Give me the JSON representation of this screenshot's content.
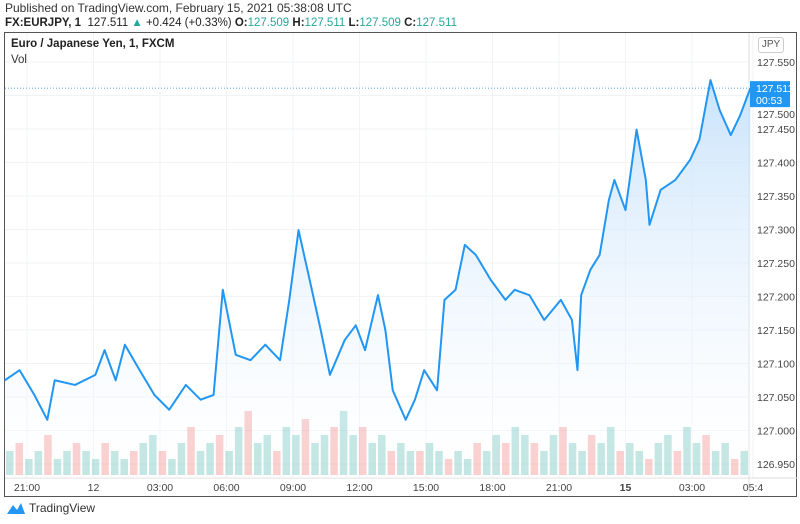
{
  "header": {
    "published": "Published on TradingView.com, February 15, 2021 05:38:08 UTC",
    "symbol": "FX:EURJPY, 1",
    "last": "127.511",
    "arrow": "▲",
    "change": "+0.424 (+0.33%)",
    "o_label": "O:",
    "o": "127.509",
    "h_label": "H:",
    "h": "127.511",
    "l_label": "L:",
    "l": "127.509",
    "c_label": "C:",
    "c": "127.511"
  },
  "legend": {
    "title": "Euro / Japanese Yen, 1, FXCM",
    "volume": "Vol"
  },
  "currency_button": "JPY",
  "footer": {
    "brand": "TradingView"
  },
  "colors": {
    "line": "#2196f3",
    "fill": "#e3f0fd",
    "up_vol": "#26a69a",
    "down_vol": "#ef5350",
    "up_text": "#26a69a"
  },
  "chart_data": {
    "type": "area",
    "ylim": [
      126.93,
      127.58
    ],
    "y_ticks": [
      "127.550",
      "127.500",
      "127.450",
      "127.400",
      "127.350",
      "127.300",
      "127.250",
      "127.200",
      "127.150",
      "127.100",
      "127.050",
      "127.000",
      "126.950"
    ],
    "x_ticks": [
      {
        "label": "21:00",
        "t": "2021-02-11 21:00"
      },
      {
        "label": "12",
        "t": "2021-02-12 00:00",
        "bold": false
      },
      {
        "label": "03:00",
        "t": "2021-02-12 03:00"
      },
      {
        "label": "06:00",
        "t": "2021-02-12 06:00"
      },
      {
        "label": "09:00",
        "t": "2021-02-12 09:00"
      },
      {
        "label": "12:00",
        "t": "2021-02-12 12:00"
      },
      {
        "label": "15:00",
        "t": "2021-02-12 15:00"
      },
      {
        "label": "18:00",
        "t": "2021-02-12 18:00"
      },
      {
        "label": "21:00",
        "t": "2021-02-12 21:00"
      },
      {
        "label": "15",
        "t": "2021-02-15 00:00",
        "bold": true
      },
      {
        "label": "03:00",
        "t": "2021-02-15 03:00"
      },
      {
        "label": "05:4",
        "t": "2021-02-15 05:45"
      }
    ],
    "current_price": "127.511",
    "countdown": "00:53",
    "series": [
      [
        "2021-02-11 20:00",
        127.075
      ],
      [
        "2021-02-11 20:40",
        127.09
      ],
      [
        "2021-02-11 21:20",
        127.053
      ],
      [
        "2021-02-11 21:55",
        127.016
      ],
      [
        "2021-02-11 22:15",
        127.075
      ],
      [
        "2021-02-11 23:10",
        127.068
      ],
      [
        "2021-02-12 00:05",
        127.083
      ],
      [
        "2021-02-12 00:30",
        127.12
      ],
      [
        "2021-02-12 01:00",
        127.075
      ],
      [
        "2021-02-12 01:25",
        127.128
      ],
      [
        "2021-02-12 02:05",
        127.09
      ],
      [
        "2021-02-12 02:45",
        127.053
      ],
      [
        "2021-02-12 03:25",
        127.031
      ],
      [
        "2021-02-12 04:10",
        127.068
      ],
      [
        "2021-02-12 04:50",
        127.046
      ],
      [
        "2021-02-12 05:25",
        127.053
      ],
      [
        "2021-02-12 05:50",
        127.21
      ],
      [
        "2021-02-12 06:25",
        127.113
      ],
      [
        "2021-02-12 07:05",
        127.105
      ],
      [
        "2021-02-12 07:45",
        127.128
      ],
      [
        "2021-02-12 08:25",
        127.105
      ],
      [
        "2021-02-12 08:50",
        127.195
      ],
      [
        "2021-02-12 09:15",
        127.299
      ],
      [
        "2021-02-12 09:45",
        127.225
      ],
      [
        "2021-02-12 10:15",
        127.15
      ],
      [
        "2021-02-12 10:40",
        127.083
      ],
      [
        "2021-02-12 11:20",
        127.135
      ],
      [
        "2021-02-12 11:50",
        127.157
      ],
      [
        "2021-02-12 12:15",
        127.12
      ],
      [
        "2021-02-12 12:50",
        127.202
      ],
      [
        "2021-02-12 13:10",
        127.15
      ],
      [
        "2021-02-12 13:30",
        127.06
      ],
      [
        "2021-02-12 14:05",
        127.016
      ],
      [
        "2021-02-12 14:30",
        127.046
      ],
      [
        "2021-02-12 14:55",
        127.09
      ],
      [
        "2021-02-12 15:30",
        127.06
      ],
      [
        "2021-02-12 15:50",
        127.195
      ],
      [
        "2021-02-12 16:20",
        127.21
      ],
      [
        "2021-02-12 16:45",
        127.277
      ],
      [
        "2021-02-12 17:15",
        127.262
      ],
      [
        "2021-02-12 17:55",
        127.225
      ],
      [
        "2021-02-12 18:35",
        127.195
      ],
      [
        "2021-02-12 19:00",
        127.21
      ],
      [
        "2021-02-12 19:40",
        127.202
      ],
      [
        "2021-02-12 20:20",
        127.165
      ],
      [
        "2021-02-12 21:05",
        127.195
      ],
      [
        "2021-02-12 21:35",
        127.165
      ],
      [
        "2021-02-12 21:50",
        127.09
      ],
      [
        "2021-02-14 22:00",
        127.202
      ],
      [
        "2021-02-14 22:25",
        127.24
      ],
      [
        "2021-02-14 22:50",
        127.262
      ],
      [
        "2021-02-14 23:15",
        127.344
      ],
      [
        "2021-02-14 23:30",
        127.374
      ],
      [
        "2021-02-15 00:00",
        127.329
      ],
      [
        "2021-02-15 00:30",
        127.449
      ],
      [
        "2021-02-15 00:55",
        127.374
      ],
      [
        "2021-02-15 01:05",
        127.307
      ],
      [
        "2021-02-15 01:35",
        127.359
      ],
      [
        "2021-02-15 02:15",
        127.374
      ],
      [
        "2021-02-15 02:55",
        127.404
      ],
      [
        "2021-02-15 03:20",
        127.434
      ],
      [
        "2021-02-15 03:50",
        127.523
      ],
      [
        "2021-02-15 04:15",
        127.478
      ],
      [
        "2021-02-15 04:45",
        127.441
      ],
      [
        "2021-02-15 05:10",
        127.47
      ],
      [
        "2021-02-15 05:38",
        127.511
      ]
    ],
    "volume": [
      3,
      4,
      2,
      3,
      5,
      2,
      3,
      4,
      3,
      2,
      4,
      3,
      2,
      3,
      4,
      5,
      3,
      2,
      4,
      6,
      3,
      4,
      5,
      3,
      6,
      8,
      4,
      5,
      3,
      6,
      5,
      7,
      4,
      5,
      6,
      8,
      5,
      6,
      4,
      5,
      3,
      4,
      3,
      3,
      4,
      3,
      2,
      3,
      2,
      4,
      3,
      5,
      4,
      6,
      5,
      4,
      3,
      5,
      6,
      4,
      3,
      5,
      4,
      6,
      3,
      4,
      3,
      2,
      4,
      5,
      3,
      6,
      4,
      5,
      3,
      4,
      2,
      3
    ]
  }
}
